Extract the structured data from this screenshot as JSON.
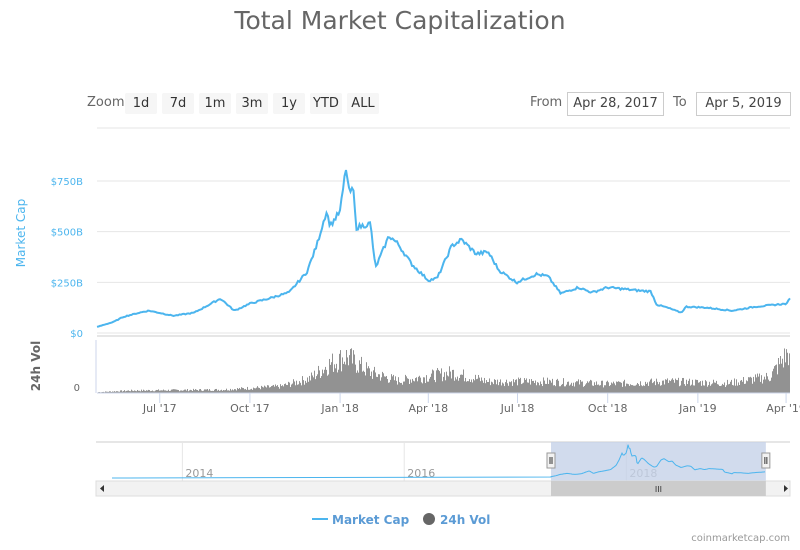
{
  "title": "Total Market Capitalization",
  "range_selector": {
    "zoom_label": "Zoom",
    "buttons": [
      "1d",
      "7d",
      "1m",
      "3m",
      "1y",
      "YTD",
      "ALL"
    ],
    "from_label": "From",
    "from_value": "Apr 28, 2017",
    "to_label": "To",
    "to_value": "Apr 5, 2019"
  },
  "credit": "coinmarketcap.com",
  "colors": {
    "market_cap": "#4cb5ee",
    "volume": "#777777",
    "navigator_mask": "#c6d2e8"
  },
  "chart_data": {
    "type": "line",
    "xrange": [
      "2017-04-28",
      "2019-04-05"
    ],
    "x_ticks": [
      "Jul '17",
      "Oct '17",
      "Jan '18",
      "Apr '18",
      "Jul '18",
      "Oct '18",
      "Jan '19",
      "Apr '19"
    ],
    "y_axis": {
      "label": "Market Cap",
      "ticks": [
        "$0",
        "$250B",
        "$500B",
        "$750B"
      ],
      "ylim": [
        0,
        875
      ],
      "units": "billion USD"
    },
    "volume_axis": {
      "label": "24h Vol",
      "ticks": [
        "0"
      ]
    },
    "legend": {
      "position": "bottom",
      "items": [
        "Market Cap",
        "24h Vol"
      ]
    },
    "series": [
      {
        "name": "Market Cap",
        "points": [
          [
            "2017-04-28",
            30
          ],
          [
            "2017-05-15",
            55
          ],
          [
            "2017-05-25",
            80
          ],
          [
            "2017-06-10",
            100
          ],
          [
            "2017-06-20",
            110
          ],
          [
            "2017-07-15",
            85
          ],
          [
            "2017-08-05",
            100
          ],
          [
            "2017-09-01",
            170
          ],
          [
            "2017-09-15",
            110
          ],
          [
            "2017-10-01",
            145
          ],
          [
            "2017-10-20",
            170
          ],
          [
            "2017-11-10",
            200
          ],
          [
            "2017-11-28",
            300
          ],
          [
            "2017-12-08",
            430
          ],
          [
            "2017-12-18",
            600
          ],
          [
            "2017-12-22",
            530
          ],
          [
            "2018-01-01",
            600
          ],
          [
            "2018-01-07",
            815
          ],
          [
            "2018-01-10",
            700
          ],
          [
            "2018-01-15",
            700
          ],
          [
            "2018-01-17",
            520
          ],
          [
            "2018-02-01",
            540
          ],
          [
            "2018-02-06",
            320
          ],
          [
            "2018-02-20",
            480
          ],
          [
            "2018-03-01",
            440
          ],
          [
            "2018-03-15",
            340
          ],
          [
            "2018-04-01",
            260
          ],
          [
            "2018-04-10",
            270
          ],
          [
            "2018-04-25",
            430
          ],
          [
            "2018-05-05",
            460
          ],
          [
            "2018-05-20",
            390
          ],
          [
            "2018-06-01",
            400
          ],
          [
            "2018-06-12",
            310
          ],
          [
            "2018-06-30",
            250
          ],
          [
            "2018-07-20",
            290
          ],
          [
            "2018-08-01",
            280
          ],
          [
            "2018-08-14",
            195
          ],
          [
            "2018-09-01",
            225
          ],
          [
            "2018-09-15",
            200
          ],
          [
            "2018-10-01",
            225
          ],
          [
            "2018-10-31",
            210
          ],
          [
            "2018-11-14",
            205
          ],
          [
            "2018-11-20",
            140
          ],
          [
            "2018-12-01",
            125
          ],
          [
            "2018-12-15",
            100
          ],
          [
            "2018-12-20",
            130
          ],
          [
            "2019-01-10",
            125
          ],
          [
            "2019-02-05",
            110
          ],
          [
            "2019-03-01",
            130
          ],
          [
            "2019-04-02",
            145
          ],
          [
            "2019-04-05",
            175
          ]
        ]
      },
      {
        "name": "24h Vol",
        "points": [
          [
            "2017-04-28",
            1
          ],
          [
            "2017-06-01",
            3
          ],
          [
            "2017-09-01",
            4
          ],
          [
            "2017-11-01",
            8
          ],
          [
            "2017-12-01",
            18
          ],
          [
            "2017-12-20",
            35
          ],
          [
            "2018-01-07",
            45
          ],
          [
            "2018-02-01",
            25
          ],
          [
            "2018-03-01",
            15
          ],
          [
            "2018-04-25",
            25
          ],
          [
            "2018-06-01",
            14
          ],
          [
            "2018-08-01",
            14
          ],
          [
            "2018-10-01",
            11
          ],
          [
            "2018-12-01",
            14
          ],
          [
            "2019-02-01",
            12
          ],
          [
            "2019-03-15",
            20
          ],
          [
            "2019-04-03",
            50
          ],
          [
            "2019-04-05",
            30
          ]
        ]
      }
    ],
    "navigator": {
      "x_ticks": [
        "2014",
        "2016",
        "2018"
      ],
      "selected": [
        "2017-04-28",
        "2019-04-05"
      ]
    }
  }
}
